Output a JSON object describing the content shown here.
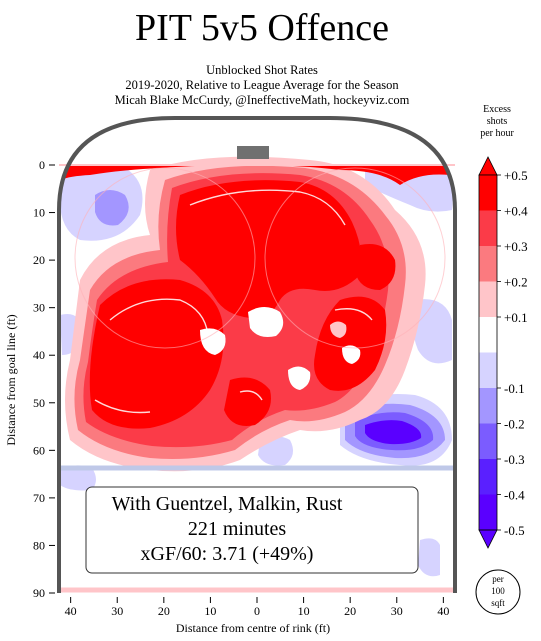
{
  "chart_data": {
    "type": "heatmap",
    "title": "PIT 5v5 Offence",
    "subtitle_lines": [
      "Unblocked Shot Rates",
      "2019-2020, Relative to League Average for the Season",
      "Micah Blake McCurdy, @IneffectiveMath, hockeyviz.com"
    ],
    "xlabel": "Distance from centre of rink (ft)",
    "ylabel": "Distance from goal line (ft)",
    "x_ticks": [
      "40",
      "30",
      "20",
      "10",
      "0",
      "10",
      "20",
      "30",
      "40"
    ],
    "y_ticks": [
      "0",
      "10",
      "20",
      "30",
      "40",
      "50",
      "60",
      "70",
      "80",
      "90"
    ],
    "xlim": [
      -42.5,
      42.5
    ],
    "ylim": [
      0,
      90
    ],
    "colorbar": {
      "title_lines": [
        "Excess",
        "shots",
        "per hour"
      ],
      "tick_labels": [
        "+0.5",
        "+0.4",
        "+0.3",
        "+0.2",
        "+0.1",
        "-0.1",
        "-0.2",
        "-0.3",
        "-0.4",
        "-0.5"
      ],
      "colors": [
        "#ff0000",
        "#fb3b48",
        "#fb7a7f",
        "#ffc5c9",
        "#ffffff",
        "#d6d3ff",
        "#a396ff",
        "#7b5cff",
        "#5a20ff",
        "#5a00ff"
      ]
    },
    "info_box": {
      "line1": "With Guentzel, Malkin, Rust",
      "line2": "221 minutes",
      "line3": "xGF/60: 3.71 (+49%)"
    },
    "unit_badge": [
      "per",
      "100",
      "sqft"
    ]
  }
}
